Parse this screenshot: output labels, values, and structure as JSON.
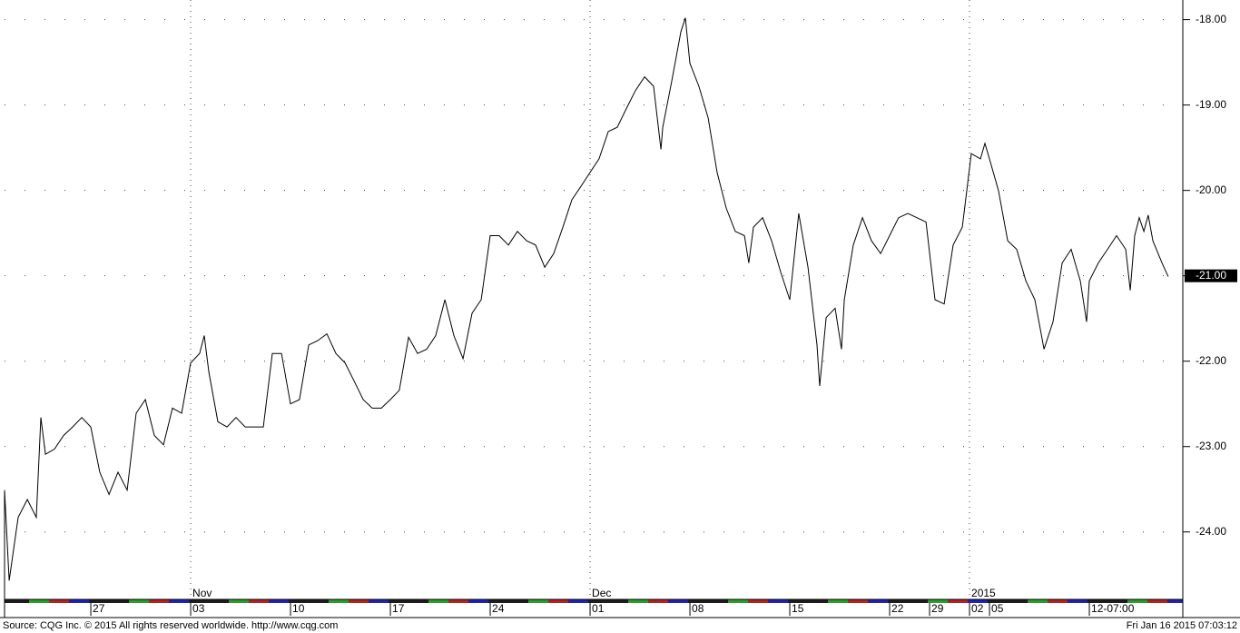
{
  "chart_data": {
    "type": "line",
    "color": "#000000",
    "grid": true,
    "xlim": [
      -4.32,
      54.68
    ],
    "ylim": [
      -24.79,
      -17.77
    ],
    "yticks": [
      {
        "value": -18,
        "label": "-18.00"
      },
      {
        "value": -19,
        "label": "-19.00"
      },
      {
        "value": -20,
        "label": "-20.00"
      },
      {
        "value": -21,
        "label": "-21.00"
      },
      {
        "value": -22,
        "label": "-22.00"
      },
      {
        "value": -23,
        "label": "-23.00"
      },
      {
        "value": -24,
        "label": "-24.00"
      }
    ],
    "xticks": [
      {
        "value": 0,
        "label": "27"
      },
      {
        "value": 5,
        "label": "03"
      },
      {
        "value": 10,
        "label": "10"
      },
      {
        "value": 15,
        "label": "17"
      },
      {
        "value": 20,
        "label": "24"
      },
      {
        "value": 25,
        "label": "01"
      },
      {
        "value": 30,
        "label": "08"
      },
      {
        "value": 35,
        "label": "15"
      },
      {
        "value": 40,
        "label": "22"
      },
      {
        "value": 42,
        "label": "29"
      },
      {
        "value": 44,
        "label": "02"
      },
      {
        "value": 45,
        "label": "05"
      },
      {
        "value": 50,
        "label": "12-07:00"
      }
    ],
    "xticks_major": [
      {
        "value": 5,
        "label": "Nov"
      },
      {
        "value": 25,
        "label": "Dec"
      },
      {
        "value": 44,
        "label": "2015"
      }
    ],
    "last_value": {
      "value": -21,
      "label": "-21.00"
    },
    "x": [
      -4.32,
      -4.09,
      -3.64,
      -3.18,
      -2.73,
      -2.5,
      -2.27,
      -1.82,
      -1.36,
      -0.91,
      -0.45,
      0,
      0.45,
      0.91,
      1.36,
      1.82,
      2.27,
      2.73,
      3.18,
      3.64,
      4.09,
      4.55,
      5,
      5.45,
      5.68,
      5.91,
      6.36,
      6.82,
      7.27,
      7.73,
      8.18,
      8.64,
      9.09,
      9.55,
      10,
      10.45,
      10.91,
      11.36,
      11.82,
      12.27,
      12.73,
      13.18,
      13.64,
      14.09,
      14.55,
      15,
      15.45,
      15.91,
      16.36,
      16.82,
      17.27,
      17.73,
      18.18,
      18.64,
      19.09,
      19.55,
      20,
      20.45,
      20.91,
      21.36,
      21.82,
      22.27,
      22.73,
      23.18,
      23.64,
      24.09,
      24.55,
      25,
      25.45,
      25.91,
      26.36,
      26.82,
      27.27,
      27.73,
      28.18,
      28.55,
      28.64,
      29.09,
      29.55,
      29.77,
      30,
      30.45,
      30.91,
      31.36,
      31.82,
      32.27,
      32.73,
      32.95,
      33.18,
      33.64,
      34.09,
      34.55,
      35,
      35.45,
      35.91,
      36.36,
      36.5,
      36.82,
      37.27,
      37.59,
      37.73,
      38.18,
      38.64,
      39.09,
      39.55,
      40,
      40.45,
      40.91,
      41.36,
      41.82,
      42.27,
      42.73,
      43.18,
      43.64,
      44.09,
      44.55,
      44.77,
      45,
      45.45,
      45.91,
      46.36,
      46.82,
      47.27,
      47.73,
      48.18,
      48.64,
      49.09,
      49.55,
      49.86,
      50,
      50.45,
      50.91,
      51.36,
      51.82,
      52.05,
      52.27,
      52.5,
      52.73,
      52.95,
      53.18,
      53.64,
      53.95
    ],
    "values": [
      -23.51,
      -24.57,
      -23.83,
      -23.62,
      -23.83,
      -22.66,
      -23.09,
      -23.03,
      -22.87,
      -22.77,
      -22.66,
      -22.77,
      -23.3,
      -23.56,
      -23.3,
      -23.51,
      -22.61,
      -22.45,
      -22.87,
      -22.98,
      -22.55,
      -22.61,
      -22.02,
      -21.91,
      -21.7,
      -22.13,
      -22.71,
      -22.77,
      -22.66,
      -22.77,
      -22.77,
      -22.77,
      -21.91,
      -21.91,
      -22.5,
      -22.45,
      -21.81,
      -21.76,
      -21.68,
      -21.91,
      -22.02,
      -22.23,
      -22.45,
      -22.55,
      -22.55,
      -22.45,
      -22.34,
      -21.72,
      -21.91,
      -21.86,
      -21.7,
      -21.28,
      -21.7,
      -21.97,
      -21.44,
      -21.28,
      -20.53,
      -20.53,
      -20.64,
      -20.48,
      -20.59,
      -20.64,
      -20.9,
      -20.74,
      -20.43,
      -20.11,
      -19.95,
      -19.79,
      -19.63,
      -19.31,
      -19.26,
      -19.04,
      -18.83,
      -18.67,
      -18.78,
      -19.52,
      -19.26,
      -18.72,
      -18.14,
      -17.98,
      -18.51,
      -18.78,
      -19.15,
      -19.79,
      -20.21,
      -20.48,
      -20.53,
      -20.85,
      -20.43,
      -20.32,
      -20.59,
      -20.96,
      -21.28,
      -20.27,
      -20.9,
      -21.81,
      -22.29,
      -21.49,
      -21.38,
      -21.86,
      -21.28,
      -20.64,
      -20.32,
      -20.59,
      -20.74,
      -20.53,
      -20.32,
      -20.27,
      -20.32,
      -20.37,
      -21.28,
      -21.33,
      -20.64,
      -20.43,
      -19.57,
      -19.63,
      -19.45,
      -19.63,
      -20.0,
      -20.59,
      -20.69,
      -21.06,
      -21.28,
      -21.86,
      -21.54,
      -20.85,
      -20.69,
      -21.06,
      -21.54,
      -21.06,
      -20.85,
      -20.69,
      -20.53,
      -20.69,
      -21.17,
      -20.53,
      -20.32,
      -20.48,
      -20.29,
      -20.59,
      -20.85,
      -21.01
    ]
  },
  "footer": {
    "source": "Source: CQG Inc. © 2015 All rights reserved worldwide. http://www.cqg.com",
    "timestamp": "Fri Jan 16 2015 07:03:12"
  }
}
